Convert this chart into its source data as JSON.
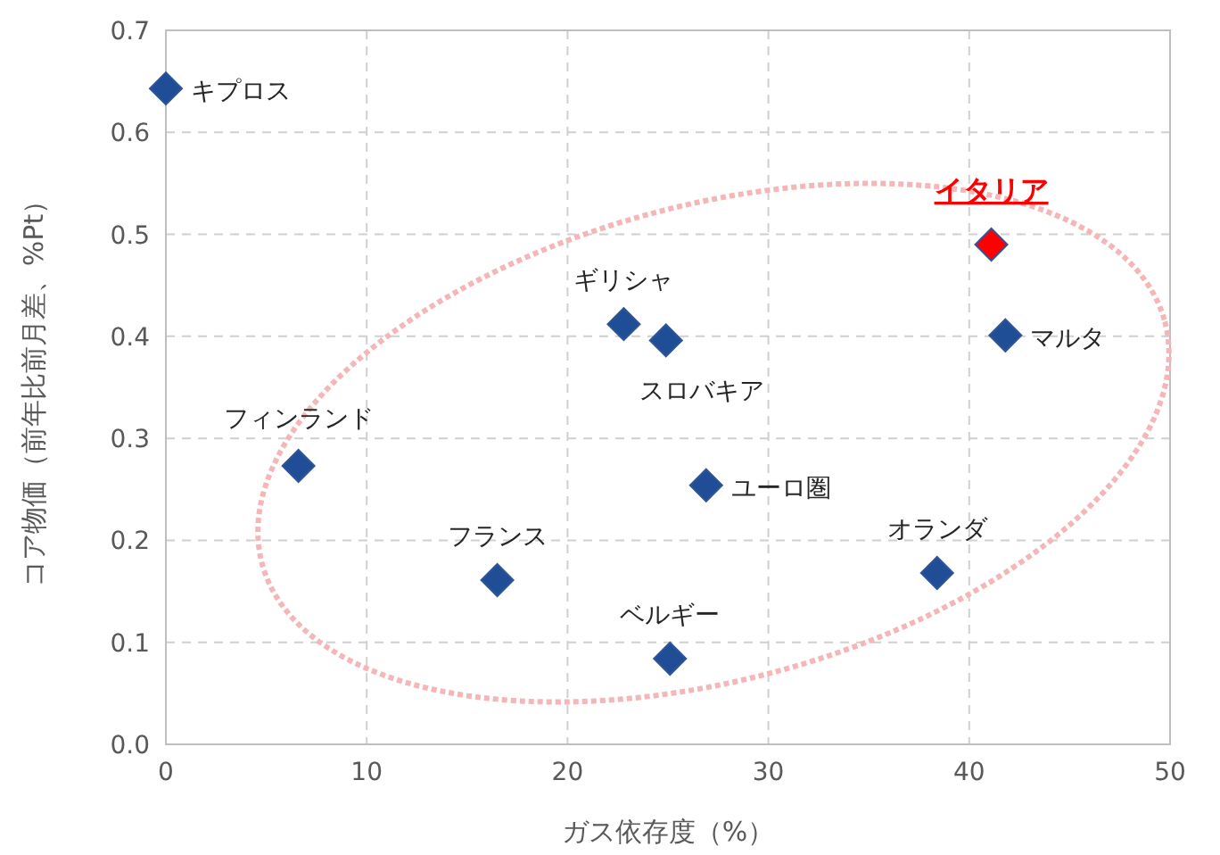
{
  "chart_data": {
    "type": "scatter",
    "xlabel": "ガス依存度（%）",
    "ylabel": "コア物価（前年比前月差、%Pt）",
    "xlim": [
      0,
      50
    ],
    "ylim": [
      0,
      0.7
    ],
    "xticks": [
      0,
      10,
      20,
      30,
      40,
      50
    ],
    "yticks": [
      {
        "value": 0,
        "label": "0.0"
      },
      {
        "value": 0.1,
        "label": "0.1"
      },
      {
        "value": 0.2,
        "label": "0.2"
      },
      {
        "value": 0.3,
        "label": "0.3"
      },
      {
        "value": 0.4,
        "label": "0.4"
      },
      {
        "value": 0.5,
        "label": "0.5"
      },
      {
        "value": 0.6,
        "label": "0.6"
      },
      {
        "value": 0.7,
        "label": "0.7"
      }
    ],
    "grid": true,
    "marker": "diamond",
    "series": [
      {
        "color": "#1f4e96",
        "x": [
          0,
          22.8,
          24.9,
          6.6,
          26.9,
          38.4,
          16.5,
          25.1,
          41.8
        ],
        "values": [
          0.643,
          0.412,
          0.396,
          0.273,
          0.254,
          0.168,
          0.161,
          0.084,
          0.401
        ]
      },
      {
        "name": "イタリア",
        "color": "#ff0000",
        "x": [
          41.1
        ],
        "values": [
          0.49
        ]
      }
    ],
    "annotations": [
      {
        "text": "キプロス",
        "x": 0,
        "y": 0.643
      },
      {
        "text": "ギリシャ",
        "x": 22.8,
        "y": 0.412
      },
      {
        "text": "スロバキア",
        "x": 24.9,
        "y": 0.396
      },
      {
        "text": "フィンランド",
        "x": 6.6,
        "y": 0.273
      },
      {
        "text": "ユーロ圏",
        "x": 26.9,
        "y": 0.254
      },
      {
        "text": "オランダ",
        "x": 38.4,
        "y": 0.168
      },
      {
        "text": "フランス",
        "x": 16.5,
        "y": 0.161
      },
      {
        "text": "ベルギー",
        "x": 25.1,
        "y": 0.084
      },
      {
        "text": "マルタ",
        "x": 41.8,
        "y": 0.401
      }
    ]
  }
}
